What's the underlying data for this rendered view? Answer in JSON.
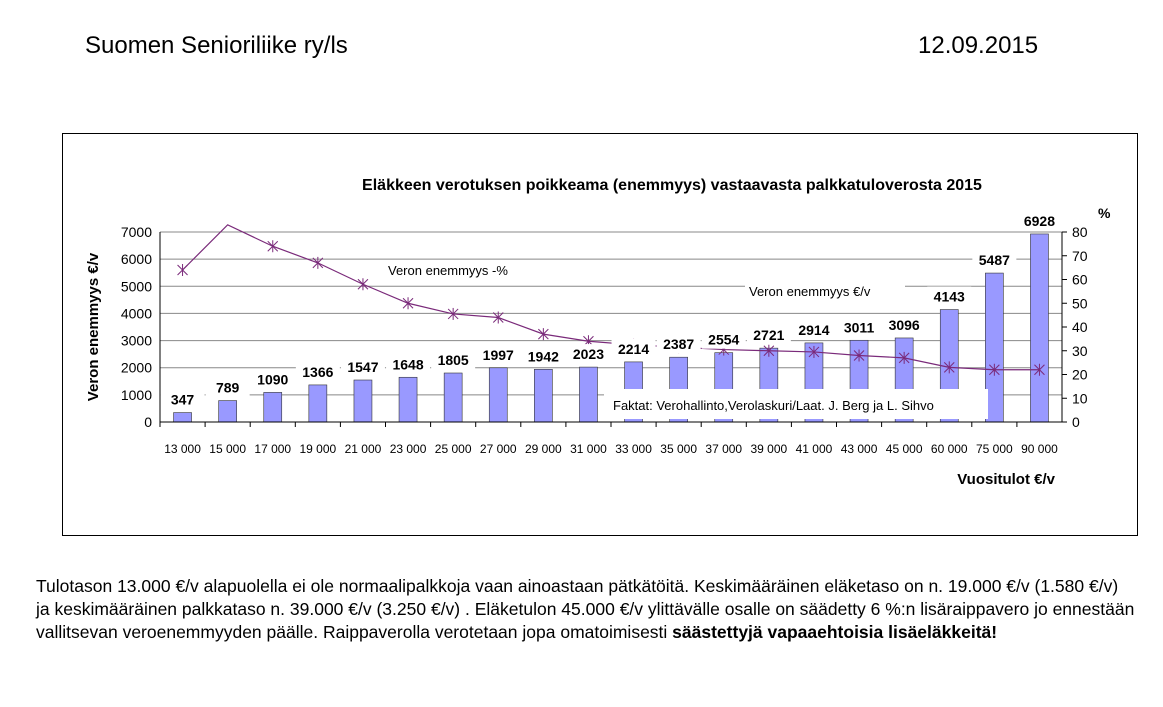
{
  "header": {
    "organization": "Suomen Senioriliike ry/ls",
    "date": "12.09.2015"
  },
  "chart_data": {
    "type": "bar",
    "title": "Eläkkeen verotuksen poikkeama (enemmyys) vastaavasta palkkatuloverosta  2015",
    "xlabel": "Vuositulot €/v",
    "ylabel": "Veron enemmyys €/v",
    "y2label": "%",
    "ylim": [
      0,
      7000
    ],
    "y2lim": [
      0,
      80
    ],
    "yticks": [
      "0",
      "1000",
      "2000",
      "3000",
      "4000",
      "5000",
      "6000",
      "7000"
    ],
    "y2ticks": [
      "0",
      "10",
      "20",
      "30",
      "40",
      "50",
      "60",
      "70",
      "80"
    ],
    "grid": true,
    "categories": [
      "13 000",
      "15 000",
      "17 000",
      "19 000",
      "21 000",
      "23 000",
      "25 000",
      "27 000",
      "29 000",
      "31 000",
      "33 000",
      "35 000",
      "37 000",
      "39 000",
      "41 000",
      "43 000",
      "45 000",
      "60 000",
      "75 000",
      "90 000"
    ],
    "series": [
      {
        "name": "Veron enemmyys €/v",
        "type": "bar",
        "axis": "left",
        "color": "#9999ff",
        "values": [
          347,
          789,
          1090,
          1366,
          1547,
          1648,
          1805,
          1997,
          1942,
          2023,
          2214,
          2387,
          2554,
          2721,
          2914,
          3011,
          3096,
          4143,
          5487,
          6928
        ]
      },
      {
        "name": "Veron enemmyys -%",
        "type": "line",
        "axis": "right",
        "color": "#7a2a7a",
        "values": [
          64,
          83,
          74,
          67,
          58,
          50,
          45.5,
          44,
          37,
          34,
          32.5,
          31.5,
          30.5,
          30,
          29.5,
          28,
          27,
          23,
          22,
          22
        ]
      }
    ],
    "source_note": "Faktat: Verohallinto,Verolaskuri/Laat. J. Berg ja  L. Sihvo"
  },
  "note": {
    "text": "Tulotason 13.000 €/v alapuolella ei ole normaalipalkkoja vaan ainoastaan pätkätöitä. Keskimääräinen eläketaso on n. 19.000 €/v (1.580 €/v) ja keskimääräinen palkkataso n. 39.000 €/v (3.250 €/v) . Eläketulon 45.000 €/v ylittävälle osalle on säädetty 6 %:n lisäraippavero jo ennestään vallitsevan veroenemmyyden päälle. Raippaverolla verotetaan jopa omatoimisesti ",
    "bold": "säästettyjä vapaaehtoisia lisäeläkkeitä!"
  }
}
